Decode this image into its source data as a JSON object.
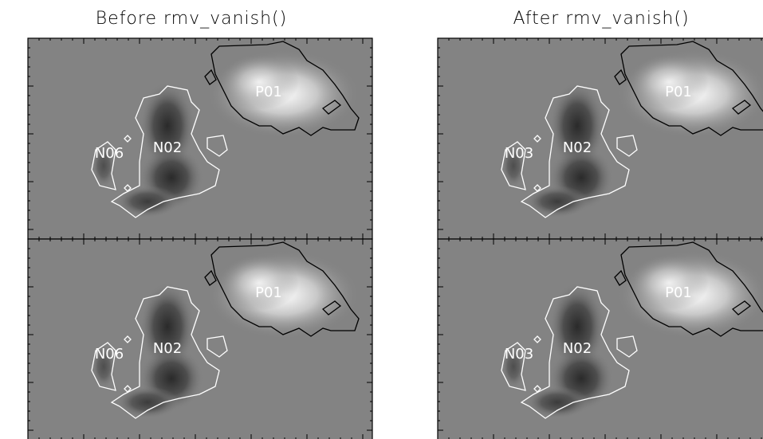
{
  "columns": [
    {
      "title": "Before rmv_vanish()",
      "rows": [
        {
          "labels": [
            "P01",
            "N02",
            "N06"
          ]
        },
        {
          "labels": [
            "P01",
            "N02",
            "N06"
          ]
        }
      ]
    },
    {
      "title": "After rmv_vanish()",
      "rows": [
        {
          "labels": [
            "P01",
            "N02",
            "N03"
          ]
        },
        {
          "labels": [
            "P01",
            "N02",
            "N03"
          ]
        }
      ]
    }
  ]
}
